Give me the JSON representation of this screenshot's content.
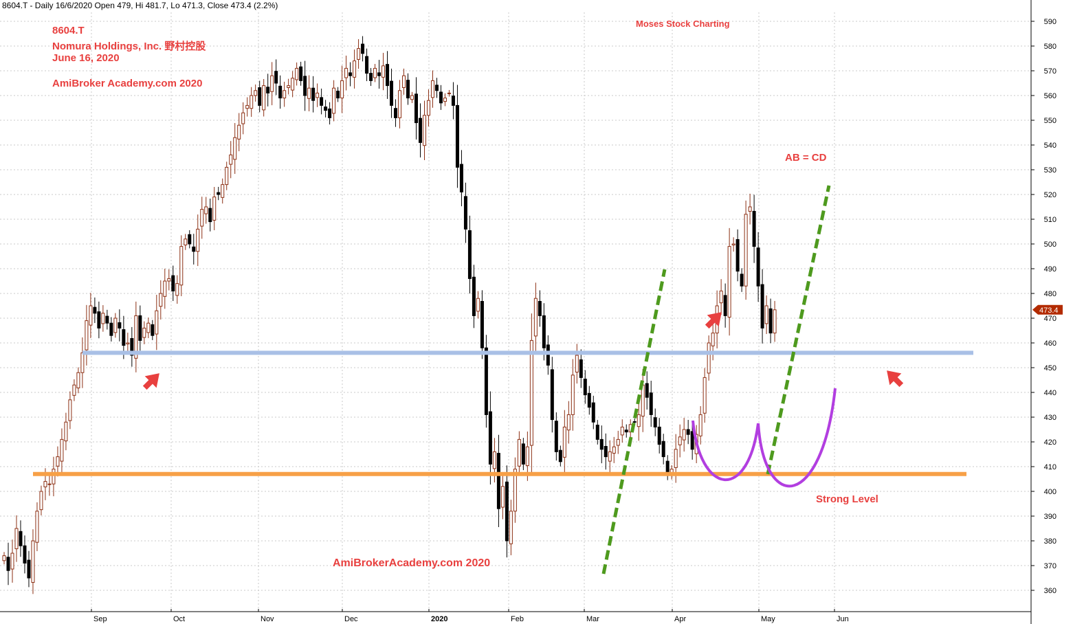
{
  "header": {
    "line": "8604.T - Daily 16/6/2020 Open 479, Hi 481.7, Lo 471.3, Close 473.4 (2.2%)"
  },
  "annotations": {
    "ticker": "8604.T",
    "company": "Nomura Holdings, Inc.  野村控股",
    "date": "June 16, 2020",
    "site_top": "AmiBroker Academy.com  2020",
    "site_bottom": "AmiBrokerAcademy.com   2020",
    "brand": "Moses Stock Charting",
    "abcd": "AB = CD",
    "strong_level": "Strong Level"
  },
  "colors": {
    "bull": "#8b2e12",
    "bear": "#000000",
    "support_blue": "#a9c0e6",
    "support_orange": "#f7a047",
    "trend_green": "#4e9a1e",
    "pattern_purple": "#b23ee0",
    "arrow_red": "#e8403f",
    "annotation_red": "#e8403f",
    "last_price_bg": "#b32b00",
    "grid": "#c8c8c8"
  },
  "chart_data": {
    "type": "candlestick",
    "ticker": "8604.T",
    "y_ticks": [
      360,
      370,
      380,
      390,
      400,
      410,
      420,
      430,
      440,
      450,
      460,
      470,
      480,
      490,
      500,
      510,
      520,
      530,
      540,
      550,
      560,
      570,
      580,
      590
    ],
    "x_labels": [
      "Sep",
      "Oct",
      "Nov",
      "Dec",
      "2020",
      "Feb",
      "Mar",
      "Apr",
      "May",
      "Jun"
    ],
    "last_price": "473.4",
    "support_levels": [
      456,
      407
    ],
    "series_close": [
      374,
      368,
      375,
      385,
      378,
      371,
      365,
      380,
      392,
      400,
      404,
      403,
      409,
      414,
      421,
      428,
      437,
      443,
      448,
      456,
      469,
      475,
      472,
      466,
      472,
      468,
      463,
      470,
      466,
      459,
      460,
      455,
      471,
      461,
      466,
      468,
      463,
      473,
      480,
      485,
      486,
      481,
      484,
      499,
      502,
      500,
      497,
      506,
      514,
      515,
      509,
      519,
      520,
      524,
      531,
      536,
      543,
      548,
      553,
      556,
      560,
      562,
      556,
      564,
      561,
      568,
      565,
      559,
      562,
      564,
      567,
      571,
      566,
      560,
      563,
      558,
      561,
      556,
      554,
      551,
      563,
      559,
      566,
      571,
      568,
      574,
      579,
      577,
      569,
      566,
      571,
      568,
      572,
      564,
      556,
      551,
      562,
      568,
      559,
      560,
      549,
      541,
      552,
      558,
      566,
      562,
      557,
      559,
      561,
      556,
      531,
      521,
      506,
      486,
      471,
      478,
      458,
      431,
      411,
      416,
      393,
      402,
      380,
      392,
      409,
      421,
      411,
      418,
      461,
      478,
      471,
      458,
      451,
      429,
      416,
      412,
      426,
      431,
      447,
      455,
      446,
      439,
      434,
      428,
      421,
      417,
      414,
      416,
      418,
      421,
      426,
      424,
      427,
      428,
      431,
      443,
      438,
      431,
      426,
      419,
      414,
      407,
      409,
      417,
      422,
      425,
      423,
      417,
      423,
      431,
      446,
      460,
      464,
      475,
      481,
      471,
      499,
      500,
      489,
      483,
      512,
      515,
      499,
      483,
      466,
      475,
      464,
      473.4
    ]
  }
}
